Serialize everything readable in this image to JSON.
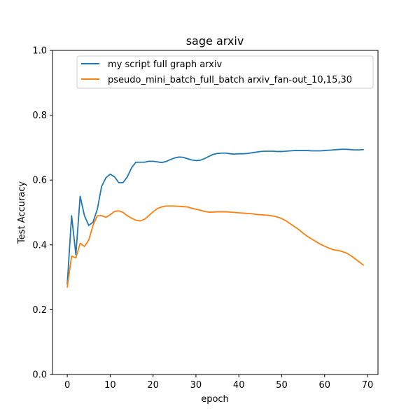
{
  "chart_data": {
    "type": "line",
    "title": "sage arxiv",
    "xlabel": "epoch",
    "ylabel": "Test Accuracy",
    "xlim": [
      -3.45,
      72.45
    ],
    "ylim": [
      0.0,
      1.0
    ],
    "xticks": [
      0,
      10,
      20,
      30,
      40,
      50,
      60,
      70
    ],
    "yticks": [
      0.0,
      0.2,
      0.4,
      0.6,
      0.8,
      1.0
    ],
    "ytick_labels": [
      "0.0",
      "0.2",
      "0.4",
      "0.6",
      "0.8",
      "1.0"
    ],
    "grid": false,
    "legend_position": "top-right",
    "series": [
      {
        "name": "my script full graph arxiv",
        "color": "#1f77b4",
        "x": [
          0,
          1,
          2,
          3,
          4,
          5,
          6,
          7,
          8,
          9,
          10,
          11,
          12,
          13,
          14,
          15,
          16,
          17,
          18,
          19,
          20,
          21,
          22,
          23,
          24,
          25,
          26,
          27,
          28,
          29,
          30,
          31,
          32,
          33,
          34,
          35,
          36,
          37,
          38,
          39,
          40,
          41,
          42,
          43,
          44,
          45,
          46,
          47,
          48,
          49,
          50,
          51,
          52,
          53,
          54,
          55,
          56,
          57,
          58,
          59,
          60,
          61,
          62,
          63,
          64,
          65,
          66,
          67,
          68,
          69
        ],
        "values": [
          0.28,
          0.49,
          0.37,
          0.55,
          0.49,
          0.46,
          0.47,
          0.51,
          0.58,
          0.607,
          0.618,
          0.61,
          0.592,
          0.592,
          0.61,
          0.638,
          0.655,
          0.655,
          0.655,
          0.658,
          0.658,
          0.656,
          0.654,
          0.657,
          0.663,
          0.668,
          0.671,
          0.67,
          0.666,
          0.662,
          0.66,
          0.661,
          0.666,
          0.673,
          0.679,
          0.682,
          0.683,
          0.683,
          0.681,
          0.68,
          0.681,
          0.681,
          0.682,
          0.684,
          0.686,
          0.688,
          0.689,
          0.689,
          0.689,
          0.688,
          0.688,
          0.689,
          0.69,
          0.691,
          0.691,
          0.691,
          0.691,
          0.69,
          0.69,
          0.69,
          0.691,
          0.692,
          0.693,
          0.694,
          0.695,
          0.695,
          0.694,
          0.693,
          0.693,
          0.694
        ]
      },
      {
        "name": "pseudo_mini_batch_full_batch arxiv_fan-out_10,15,30",
        "color": "#ff7f0e",
        "x": [
          0,
          1,
          2,
          3,
          4,
          5,
          6,
          7,
          8,
          9,
          10,
          11,
          12,
          13,
          14,
          15,
          16,
          17,
          18,
          19,
          20,
          21,
          22,
          23,
          24,
          25,
          26,
          27,
          28,
          29,
          30,
          31,
          32,
          33,
          34,
          35,
          36,
          37,
          38,
          39,
          40,
          41,
          42,
          43,
          44,
          45,
          46,
          47,
          48,
          49,
          50,
          51,
          52,
          53,
          54,
          55,
          56,
          57,
          58,
          59,
          60,
          61,
          62,
          63,
          64,
          65,
          66,
          67,
          68,
          69
        ],
        "values": [
          0.27,
          0.365,
          0.36,
          0.405,
          0.395,
          0.415,
          0.46,
          0.49,
          0.49,
          0.485,
          0.493,
          0.503,
          0.505,
          0.5,
          0.49,
          0.482,
          0.476,
          0.474,
          0.479,
          0.49,
          0.502,
          0.512,
          0.517,
          0.52,
          0.52,
          0.52,
          0.519,
          0.518,
          0.517,
          0.513,
          0.51,
          0.507,
          0.503,
          0.501,
          0.501,
          0.502,
          0.502,
          0.502,
          0.501,
          0.5,
          0.499,
          0.498,
          0.497,
          0.496,
          0.494,
          0.493,
          0.492,
          0.491,
          0.489,
          0.486,
          0.481,
          0.474,
          0.465,
          0.456,
          0.447,
          0.436,
          0.426,
          0.418,
          0.41,
          0.402,
          0.396,
          0.39,
          0.385,
          0.383,
          0.38,
          0.375,
          0.368,
          0.358,
          0.348,
          0.338
        ]
      }
    ]
  }
}
